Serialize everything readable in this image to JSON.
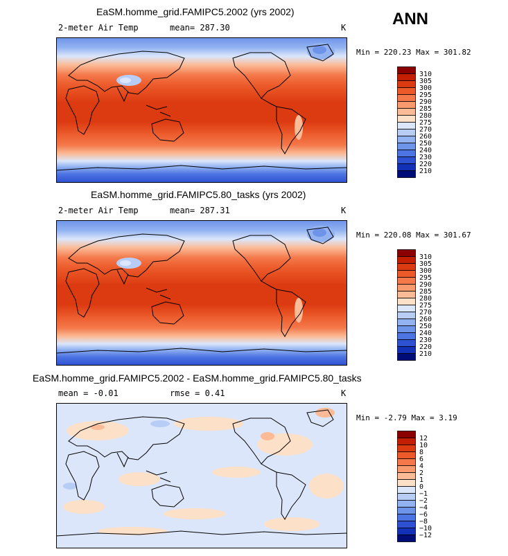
{
  "season": "ANN",
  "panels": [
    {
      "title": "EaSM.homme_grid.FAMIPC5.2002 (yrs 2002)",
      "variable": "2-meter Air Temp",
      "stat": "mean= 287.30",
      "units": "K",
      "minmax": "Min = 220.23 Max = 301.82",
      "colorbar": {
        "levels": [
          "310",
          "305",
          "300",
          "295",
          "290",
          "285",
          "280",
          "275",
          "270",
          "260",
          "250",
          "240",
          "230",
          "220",
          "210"
        ],
        "colors": [
          "#8b0000",
          "#c41e00",
          "#dc3a10",
          "#ec5a2a",
          "#f4784a",
          "#f8996e",
          "#fbbb97",
          "#fde0c8",
          "#dbe6fa",
          "#b8cdf6",
          "#92b2f1",
          "#6e94ea",
          "#4c74e2",
          "#2e50d2",
          "#1230b8",
          "#000c78"
        ]
      }
    },
    {
      "title": "EaSM.homme_grid.FAMIPC5.80_tasks (yrs 2002)",
      "variable": "2-meter Air Temp",
      "stat": "mean= 287.31",
      "units": "K",
      "minmax": "Min = 220.08 Max = 301.67",
      "colorbar": {
        "levels": [
          "310",
          "305",
          "300",
          "295",
          "290",
          "285",
          "280",
          "275",
          "270",
          "260",
          "250",
          "240",
          "230",
          "220",
          "210"
        ],
        "colors": [
          "#8b0000",
          "#c41e00",
          "#dc3a10",
          "#ec5a2a",
          "#f4784a",
          "#f8996e",
          "#fbbb97",
          "#fde0c8",
          "#dbe6fa",
          "#b8cdf6",
          "#92b2f1",
          "#6e94ea",
          "#4c74e2",
          "#2e50d2",
          "#1230b8",
          "#000c78"
        ]
      }
    },
    {
      "title": "EaSM.homme_grid.FAMIPC5.2002 - EaSM.homme_grid.FAMIPC5.80_tasks",
      "variable": "mean =  -0.01",
      "stat": "rmse =   0.41",
      "units": "K",
      "minmax": "Min =  -2.79 Max =   3.19",
      "colorbar": {
        "levels": [
          "12",
          "10",
          "8",
          "6",
          "4",
          "2",
          "1",
          "0",
          "−1",
          "−2",
          "−4",
          "−6",
          "−8",
          "−10",
          "−12"
        ],
        "colors": [
          "#8b0000",
          "#c41e00",
          "#dc3a10",
          "#ec5a2a",
          "#f4784a",
          "#f8996e",
          "#fbbb97",
          "#fde0c8",
          "#dbe6fa",
          "#b8cdf6",
          "#92b2f1",
          "#6e94ea",
          "#4c74e2",
          "#2e50d2",
          "#1230b8",
          "#000c78"
        ]
      }
    }
  ]
}
